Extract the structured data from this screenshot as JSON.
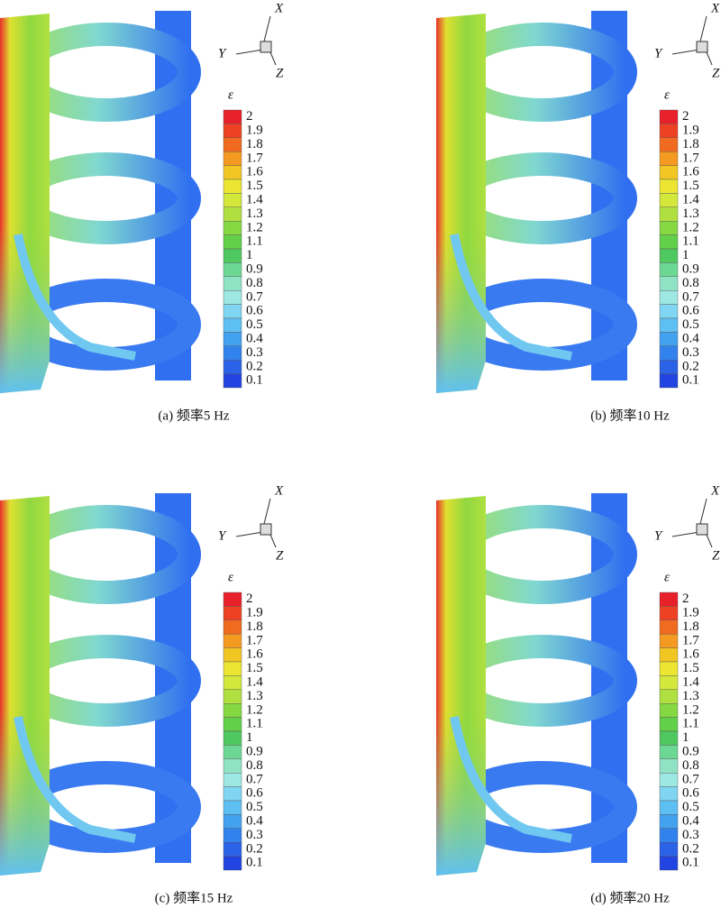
{
  "panels": [
    {
      "caption": "(a) 频率5 Hz"
    },
    {
      "caption": "(b) 频率10 Hz"
    },
    {
      "caption": "(c) 频率15 Hz"
    },
    {
      "caption": "(d) 频率20 Hz"
    }
  ],
  "axes": {
    "x": "X",
    "y": "Y",
    "z": "Z"
  },
  "colorbar": {
    "label": "ε",
    "ticks": [
      2,
      1.9,
      1.8,
      1.7,
      1.6,
      1.5,
      1.4,
      1.3,
      1.2,
      1.1,
      1,
      0.9,
      0.8,
      0.7,
      0.6,
      0.5,
      0.4,
      0.3,
      0.2,
      0.1
    ]
  }
}
